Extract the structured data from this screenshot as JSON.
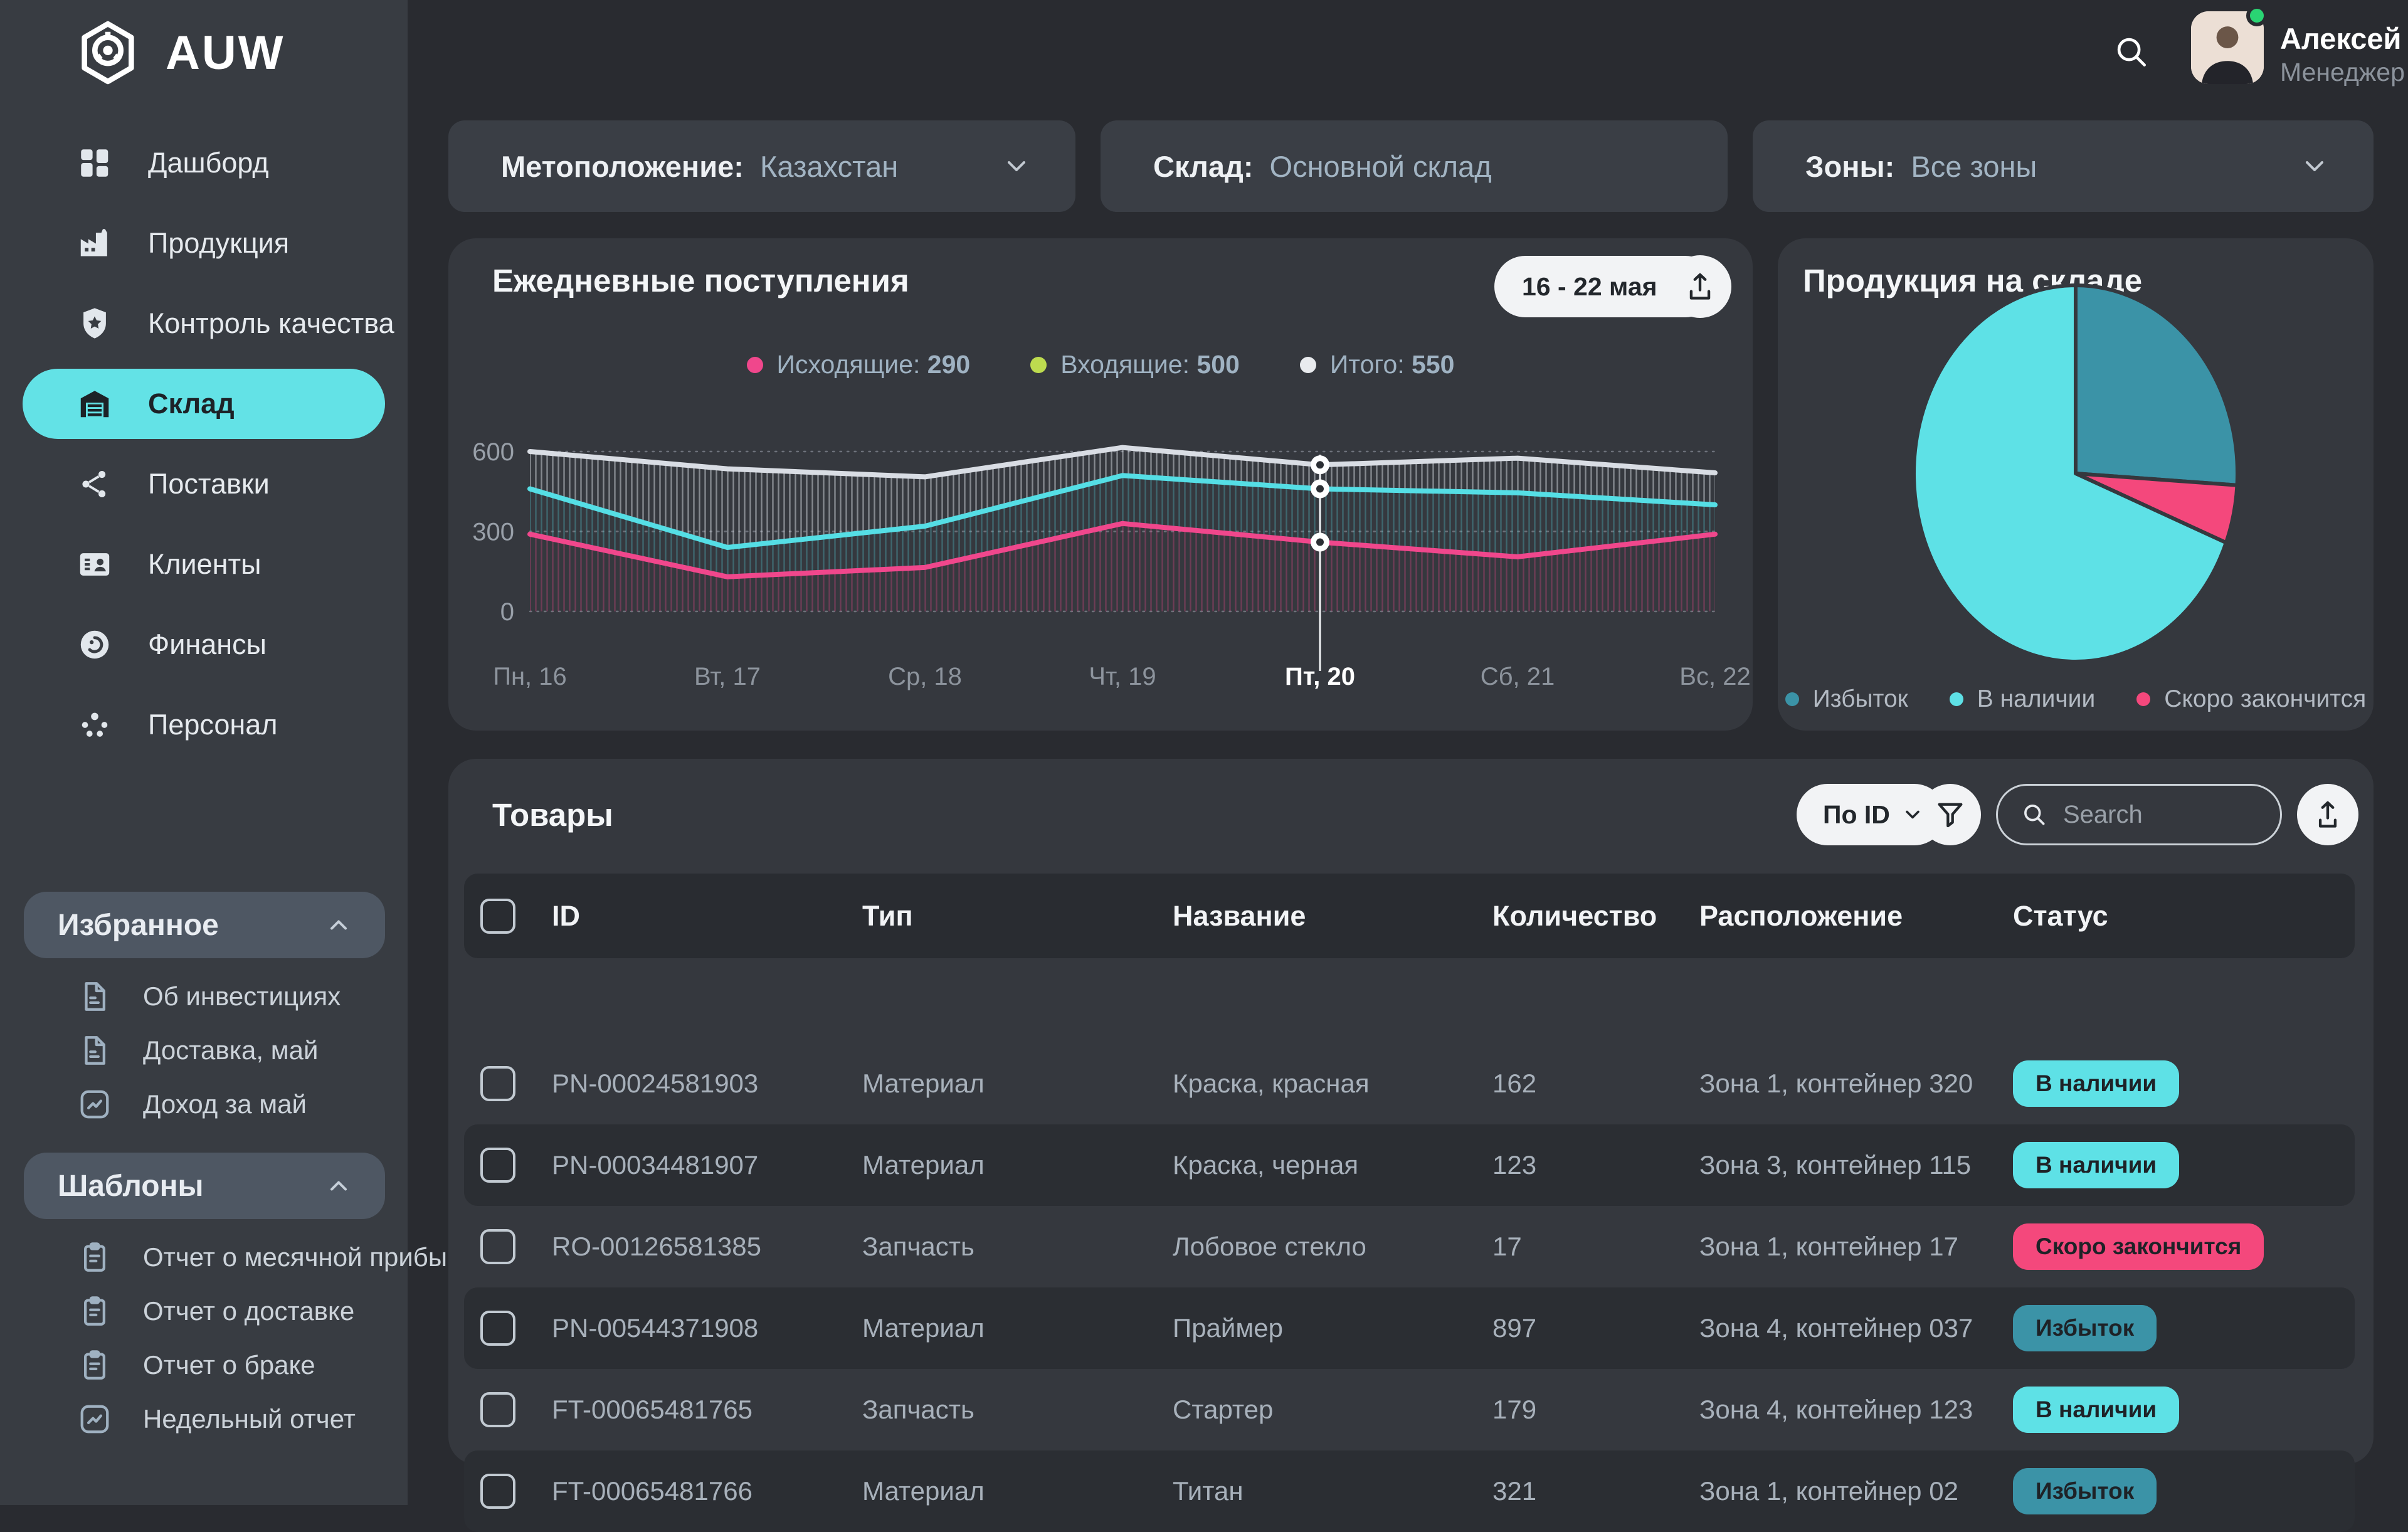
{
  "app": {
    "name": "AUW"
  },
  "topbar": {
    "user_name": "Алексей",
    "user_role": "Менеджер"
  },
  "sidebar": {
    "items": [
      {
        "label": "Дашборд",
        "icon": "dashboard-icon",
        "active": false
      },
      {
        "label": "Продукция",
        "icon": "factory-icon",
        "active": false
      },
      {
        "label": "Контроль качества",
        "icon": "quality-badge-icon",
        "active": false
      },
      {
        "label": "Склад",
        "icon": "warehouse-icon",
        "active": true
      },
      {
        "label": "Поставки",
        "icon": "supplies-icon",
        "active": false
      },
      {
        "label": "Клиенты",
        "icon": "clients-card-icon",
        "active": false
      },
      {
        "label": "Финансы",
        "icon": "finance-coin-icon",
        "active": false
      },
      {
        "label": "Персонал",
        "icon": "staff-icon",
        "active": false
      }
    ],
    "sections": [
      {
        "title": "Избранное",
        "items": [
          {
            "label": "Об инвестициях",
            "icon": "file-icon"
          },
          {
            "label": "Доставка, май",
            "icon": "file-icon"
          },
          {
            "label": "Доход за май",
            "icon": "trend-icon"
          }
        ]
      },
      {
        "title": "Шаблоны",
        "items": [
          {
            "label": "Отчет о месячной прибы...",
            "icon": "clipboard-icon"
          },
          {
            "label": "Отчет о доставке",
            "icon": "clipboard-icon"
          },
          {
            "label": "Отчет о браке",
            "icon": "clipboard-icon"
          },
          {
            "label": "Недельный отчет",
            "icon": "trend-icon"
          }
        ]
      }
    ]
  },
  "filters": [
    {
      "label": "Метоположение:",
      "value": "Казахстан",
      "chevron": true
    },
    {
      "label": "Склад:",
      "value": "Основной склад",
      "chevron": false
    },
    {
      "label": "Зоны:",
      "value": "Все зоны",
      "chevron": true
    }
  ],
  "chart_data": [
    {
      "type": "line",
      "title": "Ежедневные поступления",
      "period_label": "16 - 22 мая",
      "categories": [
        "Пн, 16",
        "Вт, 17",
        "Ср, 18",
        "Чт, 19",
        "Пт, 20",
        "Сб, 21",
        "Вс, 22"
      ],
      "highlight_index": 4,
      "ylim": [
        0,
        600
      ],
      "yticks": [
        0,
        300,
        600
      ],
      "grid": "dashed-horizontal",
      "legend_position": "top-center",
      "series": [
        {
          "name": "Исходящие",
          "legend_value": "290",
          "color": "#f0478c",
          "dot_color": "#f0478c",
          "hatch": "rgba(240,71,140,0.30)",
          "values": [
            290,
            130,
            165,
            330,
            260,
            205,
            290
          ]
        },
        {
          "name": "Входящие",
          "legend_value": "500",
          "color": "#55dee5",
          "dot_color": "#bddb4f",
          "hatch": "rgba(85,222,229,0.28)",
          "values": [
            460,
            240,
            320,
            510,
            460,
            445,
            400
          ]
        },
        {
          "name": "Итого",
          "legend_value": "550",
          "color": "#d9dde4",
          "dot_color": "#e9ebee",
          "hatch": "rgba(228,233,240,0.45)",
          "values": [
            600,
            535,
            505,
            615,
            550,
            575,
            520
          ]
        }
      ]
    },
    {
      "type": "pie",
      "title": "Продукция на складе",
      "slices": [
        {
          "label": "Избыток",
          "value": 26,
          "color": "#3b93a7"
        },
        {
          "label": "Скоро закончится",
          "value": 5,
          "color": "#f4487c"
        },
        {
          "label": "В наличии",
          "value": 69,
          "color": "#5ee1e6"
        }
      ],
      "legend_order": [
        "Избыток",
        "В наличии",
        "Скоро закончится"
      ],
      "legend_position": "bottom-center"
    }
  ],
  "table": {
    "title": "Товары",
    "sort_label": "По ID",
    "search_placeholder": "Search",
    "columns": [
      "ID",
      "Тип",
      "Название",
      "Количество",
      "Расположение",
      "Статус"
    ],
    "status_styles": {
      "В наличии": "#5ee1e6",
      "Скоро закончится": "#f4487c",
      "Избыток": "#3b93a7"
    },
    "rows": [
      {
        "id": "PN-00024581903",
        "type": "Материал",
        "name": "Краска, красная",
        "qty": "162",
        "location": "Зона 1, контейнер 320",
        "status": "В наличии"
      },
      {
        "id": "PN-00034481907",
        "type": "Материал",
        "name": "Краска, черная",
        "qty": "123",
        "location": "Зона 3, контейнер 115",
        "status": "В наличии"
      },
      {
        "id": "RO-00126581385",
        "type": "Запчасть",
        "name": "Лобовое стекло",
        "qty": "17",
        "location": "Зона 1, контейнер 17",
        "status": "Скоро закончится"
      },
      {
        "id": "PN-00544371908",
        "type": "Материал",
        "name": "Праймер",
        "qty": "897",
        "location": "Зона 4, контейнер 037",
        "status": "Избыток"
      },
      {
        "id": "FT-00065481765",
        "type": "Запчасть",
        "name": "Стартер",
        "qty": "179",
        "location": "Зона 4, контейнер 123",
        "status": "В наличии"
      },
      {
        "id": "FT-00065481766",
        "type": "Материал",
        "name": "Титан",
        "qty": "321",
        "location": "Зона 1, контейнер 02",
        "status": "Избыток"
      }
    ]
  }
}
